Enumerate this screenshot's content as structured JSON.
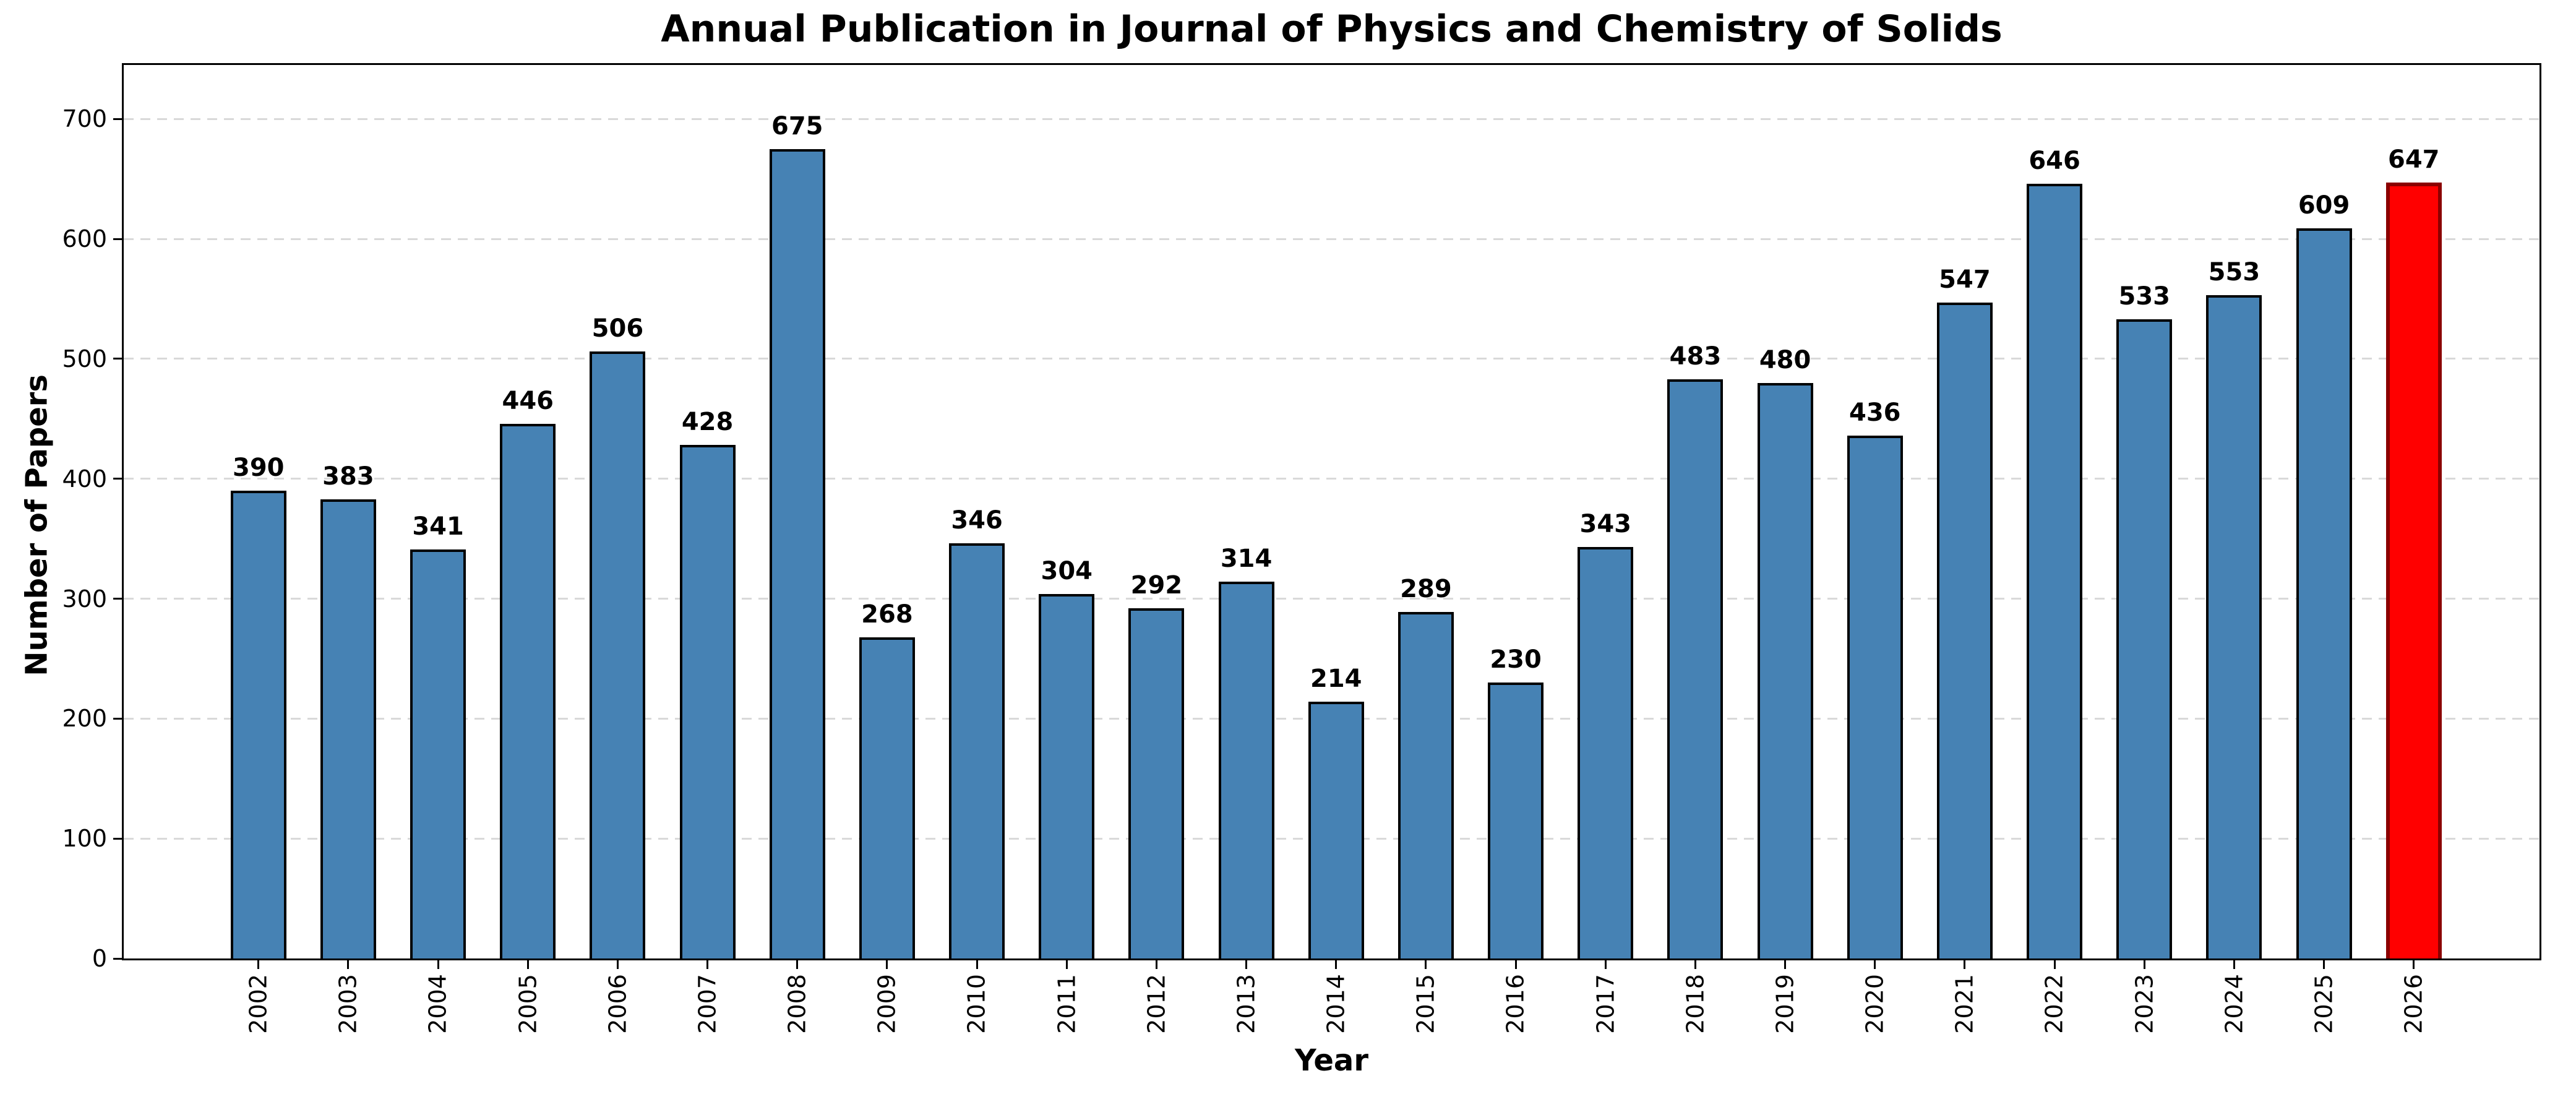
{
  "chart_data": {
    "type": "bar",
    "title": "Annual Publication in Journal of Physics and Chemistry of Solids",
    "xlabel": "Year",
    "ylabel": "Number of Papers",
    "categories": [
      "2002",
      "2003",
      "2004",
      "2005",
      "2006",
      "2007",
      "2008",
      "2009",
      "2010",
      "2011",
      "2012",
      "2013",
      "2014",
      "2015",
      "2016",
      "2017",
      "2018",
      "2019",
      "2020",
      "2021",
      "2022",
      "2023",
      "2024",
      "2025",
      "2026"
    ],
    "values": [
      390,
      383,
      341,
      446,
      506,
      428,
      675,
      268,
      346,
      304,
      292,
      314,
      214,
      289,
      230,
      343,
      483,
      480,
      436,
      547,
      646,
      533,
      553,
      609,
      647
    ],
    "yticks": [
      0,
      100,
      200,
      300,
      400,
      500,
      600,
      700
    ],
    "ylim": [
      0,
      745
    ],
    "grid": "horizontal-dashed",
    "legend": "none",
    "value_labels_shown": true,
    "bar_color": "#4682B4",
    "bar_edge_color": "#000000",
    "highlight": {
      "index": 24,
      "category": "2026",
      "value": 647,
      "color": "#FF0000",
      "edge_color": "#8B0000"
    }
  }
}
